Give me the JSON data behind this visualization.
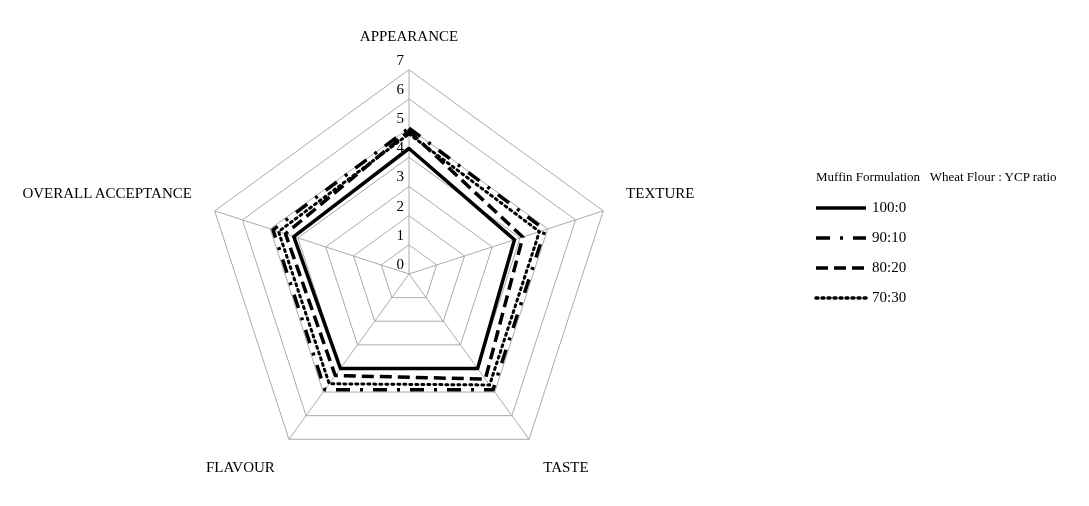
{
  "chart_data": {
    "type": "radar",
    "categories": [
      "APPEARANCE",
      "TEXTURE",
      "TASTE",
      "FLAVOUR",
      "OVERALL ACCEPTANCE"
    ],
    "legend_title": "Muffin Formulation   Wheat Flour : YCP ratio",
    "legend": "right",
    "grid": true,
    "marker": "none",
    "ylim": [
      0,
      7
    ],
    "yticks": [
      0,
      1,
      2,
      3,
      4,
      5,
      6,
      7
    ],
    "series": [
      {
        "name": "100:0",
        "color": "#000000",
        "line_style": "solid",
        "values": [
          4.3,
          3.8,
          4.0,
          4.0,
          4.15
        ]
      },
      {
        "name": "90:10",
        "color": "#000000",
        "line_style": "dashdot",
        "values": [
          5.0,
          4.9,
          4.9,
          4.9,
          4.9
        ]
      },
      {
        "name": "80:20",
        "color": "#000000",
        "line_style": "dashed",
        "values": [
          4.9,
          4.1,
          4.45,
          4.3,
          4.45
        ]
      },
      {
        "name": "70:30",
        "color": "#000000",
        "line_style": "dotted",
        "values": [
          4.8,
          4.7,
          4.7,
          4.65,
          4.7
        ]
      }
    ]
  }
}
